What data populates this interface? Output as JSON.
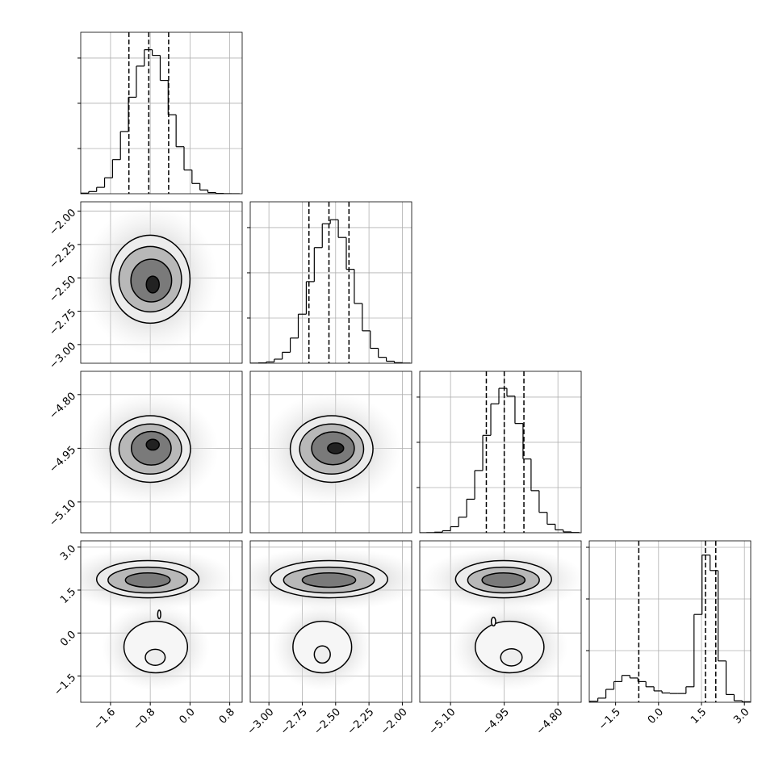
{
  "chart_data": {
    "type": "corner",
    "grid": true,
    "line_color": "#000000",
    "params": [
      {
        "xlim": [
          -2.2,
          1.05
        ],
        "ticks": [
          {
            "value": -1.6,
            "label": "−1.6"
          },
          {
            "value": -0.8,
            "label": "−0.8"
          },
          {
            "value": 0.0,
            "label": "0.0"
          },
          {
            "value": 0.8,
            "label": "0.8"
          }
        ],
        "quantiles": [
          -1.23,
          -0.83,
          -0.43
        ],
        "bins": [
          -2.2,
          -2.04,
          -1.88,
          -1.72,
          -1.56,
          -1.4,
          -1.24,
          -1.08,
          -0.92,
          -0.76,
          -0.6,
          -0.44,
          -0.28,
          -0.12,
          0.04,
          0.2,
          0.36,
          0.52,
          0.68,
          0.84,
          1.0
        ],
        "counts": [
          13,
          48,
          141,
          352,
          755,
          1376,
          2134,
          2822,
          3184,
          3059,
          2506,
          1747,
          1040,
          525,
          227,
          83,
          26,
          6,
          1,
          0
        ],
        "hist_ylim": [
          0,
          3570
        ],
        "hist_yticks": [
          1000,
          2000,
          3000
        ]
      },
      {
        "xlim": [
          -3.14,
          -1.93
        ],
        "ticks": [
          {
            "value": -3.0,
            "label": "−3.00"
          },
          {
            "value": -2.75,
            "label": "−2.75"
          },
          {
            "value": -2.5,
            "label": "−2.50"
          },
          {
            "value": -2.25,
            "label": "−2.25"
          },
          {
            "value": -2.0,
            "label": "−2.00"
          }
        ],
        "quantiles": [
          -2.7,
          -2.55,
          -2.4
        ],
        "bins": [
          -3.14,
          -3.08,
          -3.02,
          -2.96,
          -2.9,
          -2.84,
          -2.78,
          -2.72,
          -2.66,
          -2.6,
          -2.54,
          -2.48,
          -2.42,
          -2.36,
          -2.3,
          -2.24,
          -2.18,
          -2.12,
          -2.06,
          -2.0,
          -1.94
        ],
        "counts": [
          2,
          8,
          29,
          90,
          243,
          557,
          1085,
          1805,
          2557,
          3085,
          3174,
          2781,
          2077,
          1322,
          717,
          330,
          131,
          45,
          13,
          3
        ],
        "hist_ylim": [
          0,
          3570
        ],
        "hist_yticks": [
          1000,
          2000,
          3000
        ]
      },
      {
        "xlim": [
          -5.186,
          -4.735
        ],
        "ticks": [
          {
            "value": -5.1,
            "label": "−5.10"
          },
          {
            "value": -4.95,
            "label": "−4.95"
          },
          {
            "value": -4.8,
            "label": "−4.80"
          }
        ],
        "quantiles": [
          -5.0,
          -4.95,
          -4.895
        ],
        "bins": [
          -5.19,
          -5.1675,
          -5.145,
          -5.1225,
          -5.1,
          -5.0775,
          -5.055,
          -5.0325,
          -5.01,
          -4.9875,
          -4.965,
          -4.9425,
          -4.92,
          -4.8975,
          -4.875,
          -4.8525,
          -4.83,
          -4.8075,
          -4.785,
          -4.7625,
          -4.74
        ],
        "counts": [
          0,
          3,
          13,
          45,
          134,
          346,
          742,
          1376,
          2154,
          2851,
          3194,
          3021,
          2416,
          1632,
          931,
          451,
          189,
          64,
          19,
          5
        ],
        "hist_ylim": [
          0,
          3570
        ],
        "hist_yticks": [
          1000,
          2000,
          3000
        ]
      },
      {
        "xlim": [
          -2.42,
          3.22
        ],
        "ticks": [
          {
            "value": -1.5,
            "label": "−1.5"
          },
          {
            "value": 0.0,
            "label": "0.0"
          },
          {
            "value": 1.5,
            "label": "1.5"
          },
          {
            "value": 3.0,
            "label": "3.0"
          }
        ],
        "quantiles": [
          -0.69,
          1.64,
          2.0
        ],
        "bins": [
          -2.4,
          -2.12,
          -1.84,
          -1.56,
          -1.28,
          -1.0,
          -0.72,
          -0.44,
          -0.16,
          0.12,
          0.4,
          0.68,
          0.96,
          1.24,
          1.52,
          1.8,
          2.08,
          2.36,
          2.64,
          2.92,
          3.2
        ],
        "counts": [
          20,
          80,
          250,
          400,
          520,
          470,
          400,
          300,
          220,
          180,
          170,
          170,
          300,
          1700,
          2850,
          2550,
          800,
          150,
          30,
          10
        ],
        "hist_ylim": [
          0,
          3125
        ],
        "hist_yticks": [
          1000,
          2000,
          3000
        ]
      }
    ],
    "pairs": [
      {
        "x": 0,
        "y": 1,
        "contours": [
          {
            "cx": -0.8,
            "cy": -2.51,
            "rx": 0.8,
            "ry": 0.33,
            "fill": "#ececec"
          },
          {
            "cx": -0.8,
            "cy": -2.51,
            "rx": 0.63,
            "ry": 0.245,
            "fill": "#b8b8b8"
          },
          {
            "cx": -0.78,
            "cy": -2.52,
            "rx": 0.41,
            "ry": 0.16,
            "fill": "#7a7a7a"
          },
          {
            "cx": -0.75,
            "cy": -2.55,
            "rx": 0.13,
            "ry": 0.063,
            "fill": "#222222"
          }
        ]
      },
      {
        "x": 0,
        "y": 2,
        "contours": [
          {
            "cx": -0.8,
            "cy": -4.952,
            "rx": 0.81,
            "ry": 0.093,
            "fill": "#ececec"
          },
          {
            "cx": -0.8,
            "cy": -4.952,
            "rx": 0.63,
            "ry": 0.07,
            "fill": "#b8b8b8"
          },
          {
            "cx": -0.78,
            "cy": -4.95,
            "rx": 0.4,
            "ry": 0.047,
            "fill": "#7a7a7a"
          },
          {
            "cx": -0.75,
            "cy": -4.94,
            "rx": 0.13,
            "ry": 0.015,
            "fill": "#222222"
          }
        ]
      },
      {
        "x": 1,
        "y": 2,
        "contours": [
          {
            "cx": -2.53,
            "cy": -4.952,
            "rx": 0.31,
            "ry": 0.093,
            "fill": "#ececec"
          },
          {
            "cx": -2.53,
            "cy": -4.952,
            "rx": 0.24,
            "ry": 0.07,
            "fill": "#b8b8b8"
          },
          {
            "cx": -2.52,
            "cy": -4.95,
            "rx": 0.16,
            "ry": 0.046,
            "fill": "#7a7a7a"
          },
          {
            "cx": -2.5,
            "cy": -4.95,
            "rx": 0.06,
            "ry": 0.015,
            "fill": "#222222"
          }
        ]
      },
      {
        "x": 0,
        "y": 3,
        "contours": [
          {
            "cx": -0.85,
            "cy": 1.88,
            "rx": 1.03,
            "ry": 0.65,
            "fill": "#ececec"
          },
          {
            "cx": -0.85,
            "cy": 1.85,
            "rx": 0.8,
            "ry": 0.45,
            "fill": "#b8b8b8"
          },
          {
            "cx": -0.85,
            "cy": 1.85,
            "rx": 0.45,
            "ry": 0.25,
            "fill": "#7a7a7a"
          },
          {
            "cx": -0.69,
            "cy": -0.49,
            "rx": 0.64,
            "ry": 0.9,
            "fill": "#f6f6f6"
          },
          {
            "cx": -0.7,
            "cy": -0.85,
            "rx": 0.2,
            "ry": 0.28,
            "fill": "#eeeeee"
          },
          {
            "cx": -0.62,
            "cy": 0.65,
            "rx": 0.03,
            "ry": 0.15,
            "fill": "#ffffff"
          }
        ]
      },
      {
        "x": 1,
        "y": 3,
        "contours": [
          {
            "cx": -2.55,
            "cy": 1.88,
            "rx": 0.44,
            "ry": 0.65,
            "fill": "#ececec"
          },
          {
            "cx": -2.55,
            "cy": 1.85,
            "rx": 0.34,
            "ry": 0.45,
            "fill": "#b8b8b8"
          },
          {
            "cx": -2.55,
            "cy": 1.85,
            "rx": 0.2,
            "ry": 0.25,
            "fill": "#7a7a7a"
          },
          {
            "cx": -2.6,
            "cy": -0.49,
            "rx": 0.22,
            "ry": 0.9,
            "fill": "#f6f6f6"
          },
          {
            "cx": -2.6,
            "cy": -0.75,
            "rx": 0.06,
            "ry": 0.3,
            "fill": "#eeeeee"
          }
        ]
      },
      {
        "x": 2,
        "y": 3,
        "contours": [
          {
            "cx": -4.952,
            "cy": 1.88,
            "rx": 0.134,
            "ry": 0.65,
            "fill": "#ececec"
          },
          {
            "cx": -4.952,
            "cy": 1.85,
            "rx": 0.1,
            "ry": 0.45,
            "fill": "#b8b8b8"
          },
          {
            "cx": -4.952,
            "cy": 1.85,
            "rx": 0.06,
            "ry": 0.25,
            "fill": "#7a7a7a"
          },
          {
            "cx": -4.935,
            "cy": -0.49,
            "rx": 0.096,
            "ry": 0.9,
            "fill": "#f6f6f6"
          },
          {
            "cx": -4.93,
            "cy": -0.85,
            "rx": 0.03,
            "ry": 0.3,
            "fill": "#eeeeee"
          },
          {
            "cx": -4.98,
            "cy": 0.4,
            "rx": 0.006,
            "ry": 0.15,
            "fill": "#ffffff"
          }
        ]
      }
    ]
  }
}
